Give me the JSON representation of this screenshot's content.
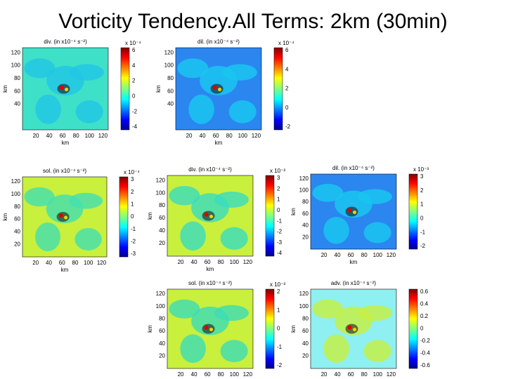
{
  "title": "Vorticity Tendency.All Terms: 2km (30min)",
  "panels": [
    {
      "title": "div. (in x10⁻⁴ s⁻²)",
      "multiplier": "x 10⁻⁴",
      "xlabel": "km",
      "ylabel": "km",
      "xticks": [
        20,
        40,
        60,
        80,
        100,
        120
      ],
      "yticks": [
        40,
        60,
        80,
        100,
        120
      ],
      "cbar_ticks": [
        6,
        4,
        2,
        0,
        -2,
        -4
      ]
    },
    {
      "title": "dil. (in x10⁻⁴ s⁻²)",
      "multiplier": "x 10⁻⁴",
      "xlabel": "km",
      "ylabel": "km",
      "xticks": [
        20,
        40,
        60,
        80,
        100,
        120
      ],
      "yticks": [
        40,
        60,
        80,
        100,
        120
      ],
      "cbar_ticks": [
        6,
        4,
        2,
        0,
        -2
      ]
    },
    {
      "title": "sol. (in x10⁻⁴ s⁻²)",
      "multiplier": "x 10⁻⁴",
      "xlabel": "km",
      "ylabel": "km",
      "xticks": [
        20,
        40,
        60,
        80,
        100,
        120
      ],
      "yticks": [
        20,
        40,
        60,
        80,
        100,
        120
      ],
      "cbar_ticks": [
        3,
        2,
        1,
        0,
        -1,
        -2,
        -3
      ]
    },
    {
      "title": "div. (in x10⁻⁴ s⁻²)",
      "multiplier": "x 10⁻³",
      "xlabel": "km",
      "ylabel": "km",
      "xticks": [
        20,
        40,
        60,
        80,
        100,
        120
      ],
      "yticks": [
        20,
        40,
        60,
        80,
        100,
        120
      ],
      "cbar_ticks": [
        3,
        2,
        1,
        0,
        -1,
        -2,
        -3,
        -4
      ]
    },
    {
      "title": "dil. (in x10⁻⁴ s⁻²)",
      "multiplier": "x 10⁻³",
      "xlabel": "km",
      "ylabel": "km",
      "xticks": [
        20,
        40,
        60,
        80,
        100,
        120
      ],
      "yticks": [
        20,
        40,
        60,
        80,
        100,
        120
      ],
      "cbar_ticks": [
        3,
        2,
        1,
        0,
        -1,
        -2
      ]
    },
    {
      "title": "sol. (in x10⁻⁴ s⁻²)",
      "multiplier": "x 10⁻³",
      "xlabel": "km",
      "ylabel": "km",
      "xticks": [
        20,
        40,
        60,
        80,
        100,
        120
      ],
      "yticks": [
        20,
        40,
        60,
        80,
        100,
        120
      ],
      "cbar_ticks": [
        2,
        1,
        0,
        -1,
        -2
      ]
    },
    {
      "title": "adv. (in x10⁻⁴ s⁻²)",
      "multiplier": "",
      "xlabel": "km",
      "ylabel": "km",
      "xticks": [
        20,
        40,
        60,
        80,
        100,
        120
      ],
      "yticks": [
        20,
        40,
        60,
        80,
        100,
        120
      ],
      "cbar_ticks": [
        0.6,
        0.4,
        0.2,
        0,
        -0.2,
        -0.4,
        -0.6
      ]
    }
  ]
}
